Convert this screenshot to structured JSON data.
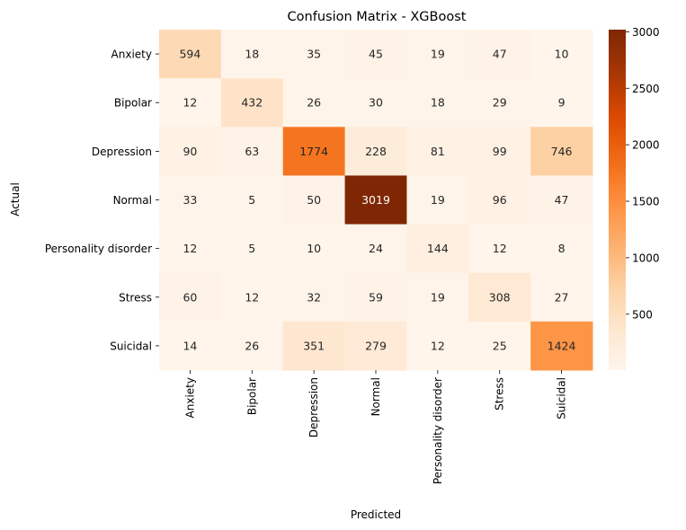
{
  "chart_data": {
    "type": "heatmap",
    "title": "Confusion Matrix - XGBoost",
    "xlabel": "Predicted",
    "ylabel": "Actual",
    "x_categories": [
      "Anxiety",
      "Bipolar",
      "Depression",
      "Normal",
      "Personality disorder",
      "Stress",
      "Suicidal"
    ],
    "y_categories": [
      "Anxiety",
      "Bipolar",
      "Depression",
      "Normal",
      "Personality disorder",
      "Stress",
      "Suicidal"
    ],
    "values": [
      [
        594,
        18,
        35,
        45,
        19,
        47,
        10
      ],
      [
        12,
        432,
        26,
        30,
        18,
        29,
        9
      ],
      [
        90,
        63,
        1774,
        228,
        81,
        99,
        746
      ],
      [
        33,
        5,
        50,
        3019,
        19,
        96,
        47
      ],
      [
        12,
        5,
        10,
        24,
        144,
        12,
        8
      ],
      [
        60,
        12,
        32,
        59,
        19,
        308,
        27
      ],
      [
        14,
        26,
        351,
        279,
        12,
        25,
        1424
      ]
    ],
    "colormap": "Oranges",
    "vmin": 5,
    "vmax": 3019,
    "colorbar_ticks": [
      "500",
      "1000",
      "1500",
      "2000",
      "2500",
      "3000"
    ]
  }
}
